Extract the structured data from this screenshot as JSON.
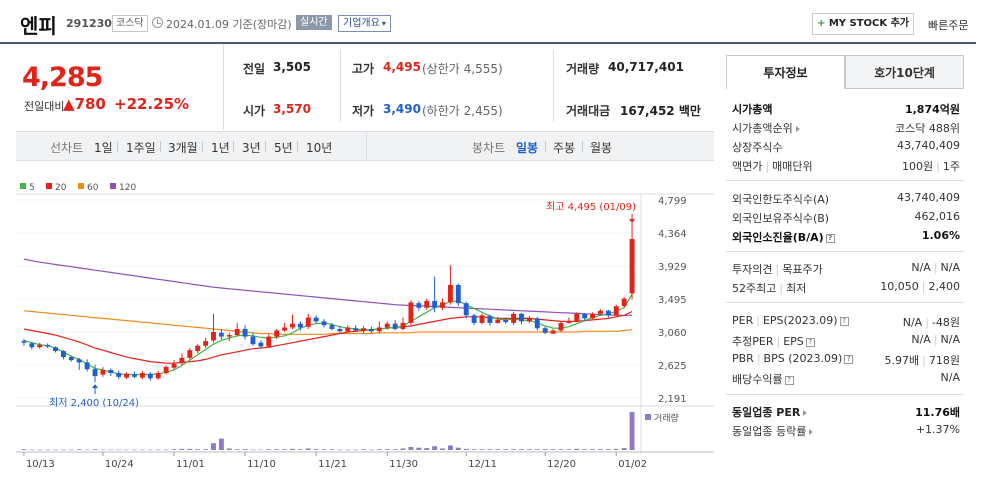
{
  "header": {
    "name": "엔피",
    "code": "291230",
    "market_tag": "코스닥",
    "base_date": "2024.01.09 기준(장마감)",
    "realtime_tag": "실시간",
    "company_tag": "기업개요",
    "mystock_label": "MY STOCK 추가",
    "quick_order_label": "빠른주문"
  },
  "price": {
    "current": "4,285",
    "change_label": "전일대비",
    "change": "780",
    "change_pct": "+22.25%"
  },
  "quote": {
    "prev_label": "전일",
    "prev": "3,505",
    "open_label": "시가",
    "open": "3,570",
    "high_label": "고가",
    "high": "4,495",
    "high_limit": "(상한가 4,555)",
    "low_label": "저가",
    "low": "3,490",
    "low_limit": "(하한가 2,455)",
    "volume_label": "거래량",
    "volume": "40,717,401",
    "amount_label": "거래대금",
    "amount": "167,452",
    "amount_unit": "백만"
  },
  "period_bar": {
    "line_label": "선차트",
    "periods": [
      "1일",
      "1주일",
      "3개월",
      "1년",
      "3년",
      "5년",
      "10년"
    ],
    "candle_label": "봉차트",
    "candle_periods": [
      "일봉",
      "주봉",
      "월봉"
    ],
    "active_candle": "일봉"
  },
  "colors": {
    "up": "#e2231a",
    "down": "#1f5fd1",
    "ma5": "#44b544",
    "ma20": "#e2231a",
    "ma60": "#f08c1e",
    "ma120": "#8e52b5",
    "volume": "#8f7ac4"
  },
  "chart_data": {
    "type": "candlestick",
    "legend": [
      {
        "name": "5",
        "color": "#44b544"
      },
      {
        "name": "20",
        "color": "#e2231a"
      },
      {
        "name": "60",
        "color": "#f08c1e"
      },
      {
        "name": "120",
        "color": "#8e52b5"
      }
    ],
    "y_ticks": [
      4799,
      4364,
      3929,
      3495,
      3060,
      2625,
      2191
    ],
    "ylim": [
      2191,
      4799
    ],
    "x_ticks": [
      "10/13",
      "10/24",
      "11/01",
      "11/10",
      "11/21",
      "11/30",
      "12/11",
      "12/20",
      "01/02"
    ],
    "max_annotation": "최고 4,495 (01/09)",
    "min_annotation": "최저 2,400 (10/24)",
    "volume_label": "거래량",
    "candles": [
      [
        2940,
        2920,
        2970,
        2880
      ],
      [
        2910,
        2860,
        2930,
        2830
      ],
      [
        2860,
        2890,
        2920,
        2840
      ],
      [
        2890,
        2870,
        2910,
        2850
      ],
      [
        2860,
        2810,
        2870,
        2790
      ],
      [
        2810,
        2730,
        2820,
        2700
      ],
      [
        2730,
        2690,
        2750,
        2670
      ],
      [
        2700,
        2660,
        2720,
        2560
      ],
      [
        2660,
        2570,
        2700,
        2540
      ],
      [
        2570,
        2480,
        2630,
        2400
      ],
      [
        2500,
        2560,
        2600,
        2470
      ],
      [
        2560,
        2520,
        2580,
        2480
      ],
      [
        2520,
        2470,
        2550,
        2440
      ],
      [
        2460,
        2510,
        2530,
        2440
      ],
      [
        2500,
        2470,
        2540,
        2450
      ],
      [
        2460,
        2520,
        2550,
        2440
      ],
      [
        2510,
        2450,
        2530,
        2420
      ],
      [
        2450,
        2520,
        2550,
        2430
      ],
      [
        2520,
        2600,
        2620,
        2500
      ],
      [
        2590,
        2640,
        2690,
        2560
      ],
      [
        2650,
        2720,
        2780,
        2620
      ],
      [
        2720,
        2820,
        2850,
        2700
      ],
      [
        2810,
        2880,
        2900,
        2780
      ],
      [
        2880,
        2940,
        2980,
        2850
      ],
      [
        2950,
        3060,
        3300,
        2920
      ],
      [
        3050,
        3000,
        3100,
        2960
      ],
      [
        3000,
        3020,
        3050,
        2940
      ],
      [
        3020,
        3100,
        3180,
        3000
      ],
      [
        3100,
        3000,
        3150,
        2960
      ],
      [
        3000,
        2900,
        3050,
        2880
      ],
      [
        2920,
        2870,
        2950,
        2850
      ],
      [
        2870,
        3000,
        3030,
        2850
      ],
      [
        3000,
        3080,
        3100,
        2970
      ],
      [
        3080,
        3120,
        3180,
        3060
      ],
      [
        3120,
        3170,
        3290,
        3100
      ],
      [
        3170,
        3120,
        3200,
        3080
      ],
      [
        3130,
        3250,
        3300,
        3100
      ],
      [
        3250,
        3200,
        3280,
        3170
      ],
      [
        3200,
        3150,
        3230,
        3120
      ],
      [
        3150,
        3100,
        3180,
        3080
      ],
      [
        3100,
        3070,
        3140,
        3050
      ],
      [
        3070,
        3120,
        3150,
        3050
      ],
      [
        3110,
        3080,
        3150,
        3060
      ],
      [
        3080,
        3110,
        3140,
        3040
      ],
      [
        3100,
        3070,
        3130,
        3050
      ],
      [
        3070,
        3120,
        3200,
        3040
      ],
      [
        3120,
        3170,
        3200,
        3090
      ],
      [
        3170,
        3100,
        3220,
        3080
      ],
      [
        3100,
        3180,
        3250,
        3080
      ],
      [
        3180,
        3450,
        3480,
        3150
      ],
      [
        3440,
        3380,
        3470,
        3340
      ],
      [
        3380,
        3470,
        3500,
        3350
      ],
      [
        3470,
        3380,
        3790,
        3320
      ],
      [
        3380,
        3450,
        3500,
        3350
      ],
      [
        3450,
        3680,
        3940,
        3420
      ],
      [
        3680,
        3440,
        3700,
        3400
      ],
      [
        3440,
        3280,
        3460,
        3240
      ],
      [
        3280,
        3180,
        3300,
        3150
      ],
      [
        3180,
        3280,
        3300,
        3160
      ],
      [
        3270,
        3180,
        3290,
        3140
      ],
      [
        3180,
        3220,
        3260,
        3170
      ],
      [
        3220,
        3190,
        3250,
        3170
      ],
      [
        3180,
        3300,
        3320,
        3150
      ],
      [
        3300,
        3200,
        3310,
        3160
      ],
      [
        3200,
        3240,
        3270,
        3180
      ],
      [
        3240,
        3110,
        3260,
        3080
      ],
      [
        3110,
        3050,
        3130,
        3030
      ],
      [
        3040,
        3080,
        3100,
        3030
      ],
      [
        3080,
        3180,
        3200,
        3060
      ],
      [
        3180,
        3200,
        3250,
        3170
      ],
      [
        3200,
        3300,
        3320,
        3190
      ],
      [
        3300,
        3240,
        3310,
        3200
      ],
      [
        3240,
        3300,
        3320,
        3230
      ],
      [
        3300,
        3340,
        3360,
        3280
      ],
      [
        3340,
        3280,
        3350,
        3250
      ],
      [
        3280,
        3400,
        3420,
        3270
      ],
      [
        3400,
        3500,
        3520,
        3390
      ],
      [
        3570,
        4285,
        4495,
        3490
      ]
    ],
    "ma5": [
      2950,
      2920,
      2895,
      2880,
      2850,
      2800,
      2740,
      2700,
      2640,
      2580,
      2560,
      2530,
      2510,
      2500,
      2500,
      2500,
      2500,
      2510,
      2530,
      2560,
      2620,
      2690,
      2760,
      2830,
      2900,
      2950,
      2980,
      3010,
      3020,
      3010,
      2990,
      2980,
      2990,
      3010,
      3050,
      3110,
      3150,
      3170,
      3180,
      3160,
      3130,
      3110,
      3100,
      3090,
      3090,
      3100,
      3110,
      3120,
      3140,
      3200,
      3260,
      3320,
      3380,
      3420,
      3460,
      3470,
      3420,
      3370,
      3320,
      3270,
      3230,
      3220,
      3230,
      3220,
      3210,
      3180,
      3140,
      3110,
      3110,
      3130,
      3170,
      3210,
      3250,
      3280,
      3300,
      3330,
      3380,
      3560
    ],
    "ma20": [
      3100,
      3080,
      3060,
      3040,
      3020,
      2990,
      2960,
      2930,
      2890,
      2850,
      2820,
      2790,
      2760,
      2730,
      2710,
      2690,
      2670,
      2660,
      2650,
      2650,
      2660,
      2670,
      2680,
      2700,
      2730,
      2760,
      2780,
      2800,
      2820,
      2840,
      2850,
      2860,
      2880,
      2900,
      2920,
      2940,
      2960,
      2980,
      3000,
      3020,
      3040,
      3060,
      3070,
      3080,
      3090,
      3100,
      3110,
      3120,
      3130,
      3140,
      3160,
      3180,
      3200,
      3220,
      3240,
      3250,
      3260,
      3260,
      3260,
      3250,
      3240,
      3240,
      3240,
      3240,
      3240,
      3230,
      3220,
      3210,
      3200,
      3200,
      3200,
      3210,
      3220,
      3230,
      3240,
      3260,
      3280,
      3330
    ],
    "ma60": [
      3340,
      3330,
      3320,
      3310,
      3300,
      3290,
      3280,
      3270,
      3260,
      3250,
      3240,
      3230,
      3220,
      3210,
      3200,
      3190,
      3180,
      3170,
      3160,
      3150,
      3140,
      3130,
      3120,
      3110,
      3100,
      3090,
      3080,
      3070,
      3060,
      3050,
      3040,
      3040,
      3030,
      3030,
      3030,
      3030,
      3030,
      3030,
      3030,
      3040,
      3040,
      3040,
      3040,
      3040,
      3040,
      3050,
      3050,
      3050,
      3050,
      3050,
      3060,
      3060,
      3060,
      3060,
      3060,
      3060,
      3060,
      3060,
      3060,
      3060,
      3060,
      3060,
      3060,
      3060,
      3060,
      3060,
      3060,
      3060,
      3060,
      3060,
      3060,
      3070,
      3070,
      3070,
      3070,
      3070,
      3080,
      3090
    ],
    "ma120": [
      4020,
      4000,
      3980,
      3965,
      3950,
      3935,
      3920,
      3905,
      3890,
      3875,
      3860,
      3845,
      3830,
      3815,
      3800,
      3785,
      3770,
      3755,
      3740,
      3725,
      3710,
      3695,
      3680,
      3665,
      3650,
      3640,
      3630,
      3620,
      3610,
      3600,
      3590,
      3580,
      3570,
      3560,
      3550,
      3540,
      3530,
      3520,
      3510,
      3500,
      3490,
      3480,
      3470,
      3460,
      3450,
      3440,
      3430,
      3420,
      3415,
      3410,
      3405,
      3400,
      3395,
      3390,
      3385,
      3380,
      3375,
      3370,
      3365,
      3360,
      3355,
      3350,
      3345,
      3340,
      3335,
      3330,
      3325,
      3320,
      3315,
      3310,
      3305,
      3300,
      3295,
      3290,
      3285,
      3280,
      3280,
      3280
    ],
    "volume": [
      2,
      1,
      1,
      1,
      1,
      1,
      1,
      2,
      1,
      2,
      1,
      1,
      1,
      1,
      1,
      1,
      1,
      1,
      1,
      2,
      3,
      3,
      2,
      2,
      18,
      30,
      4,
      2,
      2,
      1,
      1,
      2,
      2,
      2,
      3,
      2,
      4,
      2,
      2,
      2,
      1,
      1,
      1,
      2,
      1,
      2,
      2,
      2,
      4,
      8,
      6,
      5,
      10,
      4,
      12,
      6,
      3,
      2,
      2,
      2,
      2,
      2,
      2,
      2,
      2,
      2,
      2,
      2,
      2,
      2,
      3,
      2,
      2,
      2,
      2,
      3,
      5,
      100
    ]
  },
  "invest": {
    "tab_invest": "투자정보",
    "tab_hoga": "호가10단계",
    "market_cap_label": "시가총액",
    "market_cap": "1,874억원",
    "rank_label": "시가총액순위",
    "rank": "코스닥 488위",
    "shares_label": "상장주식수",
    "shares": "43,740,409",
    "par_label": "액면가",
    "trade_unit_label": "매매단위",
    "par": "100원",
    "trade_unit": "1주",
    "foreign_limit_label": "외국인한도주식수(A)",
    "foreign_limit": "43,740,409",
    "foreign_hold_label": "외국인보유주식수(B)",
    "foreign_hold": "462,016",
    "foreign_rate_label": "외국인소진율(B/A)",
    "foreign_rate": "1.06%",
    "opinion_label": "투자의견",
    "target_label": "목표주가",
    "opinion": "N/A",
    "target": "N/A",
    "w52_high_label": "52주최고",
    "w52_low_label": "최저",
    "w52_high": "10,050",
    "w52_low": "2,400",
    "per_label": "PER",
    "eps_label": "EPS(2023.09)",
    "per": "N/A",
    "eps": "-48원",
    "eper_label": "추정PER",
    "eeps_label": "EPS",
    "eper": "N/A",
    "eeps": "N/A",
    "pbr_label": "PBR",
    "bps_label": "BPS (2023.09)",
    "pbr": "5.97배",
    "bps": "718원",
    "div_label": "배당수익률",
    "div": "N/A",
    "ind_per_label": "동일업종 PER",
    "ind_per": "11.76배",
    "ind_rate_label": "동일업종 등락률",
    "ind_rate": "+1.37%"
  }
}
